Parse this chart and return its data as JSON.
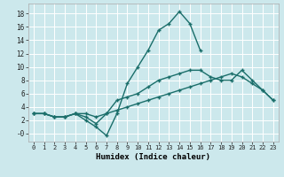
{
  "xlabel": "Humidex (Indice chaleur)",
  "bg_color": "#cce8ec",
  "grid_color": "#ffffff",
  "line_color": "#1a6e6a",
  "xlim": [
    -0.5,
    23.5
  ],
  "ylim": [
    -1.2,
    19.5
  ],
  "xticks": [
    0,
    1,
    2,
    3,
    4,
    5,
    6,
    7,
    8,
    9,
    10,
    11,
    12,
    13,
    14,
    15,
    16,
    17,
    18,
    19,
    20,
    21,
    22,
    23
  ],
  "yticks": [
    0,
    2,
    4,
    6,
    8,
    10,
    12,
    14,
    16,
    18
  ],
  "ytick_labels": [
    "-0",
    "2",
    "4",
    "6",
    "8",
    "10",
    "12",
    "14",
    "16",
    "18"
  ],
  "line1_x": [
    0,
    1,
    2,
    3,
    4,
    5,
    6,
    7,
    8,
    9,
    10,
    11,
    12,
    13,
    14,
    15,
    16
  ],
  "line1_y": [
    3,
    3,
    2.5,
    2.5,
    3,
    2,
    1,
    -0.3,
    3,
    7.5,
    10,
    12.5,
    15.5,
    16.5,
    18.3,
    16.5,
    12.5
  ],
  "line2_x": [
    0,
    1,
    2,
    3,
    4,
    5,
    6,
    7,
    8,
    9,
    10,
    11,
    12,
    13,
    14,
    15,
    16,
    17,
    18,
    19,
    20,
    21,
    22,
    23
  ],
  "line2_y": [
    3,
    3,
    2.5,
    2.5,
    3,
    2.5,
    1.5,
    3,
    5,
    5.5,
    6,
    7,
    8,
    8.5,
    9,
    9.5,
    9.5,
    8.5,
    8,
    8,
    9.5,
    8,
    6.5,
    5
  ],
  "line3_x": [
    0,
    1,
    2,
    3,
    4,
    5,
    6,
    7,
    8,
    9,
    10,
    11,
    12,
    13,
    14,
    15,
    16,
    17,
    18,
    19,
    20,
    21,
    22,
    23
  ],
  "line3_y": [
    3,
    3,
    2.5,
    2.5,
    3,
    3,
    2.5,
    3,
    3.5,
    4,
    4.5,
    5,
    5.5,
    6,
    6.5,
    7,
    7.5,
    8,
    8.5,
    9,
    8.5,
    7.5,
    6.5,
    5
  ]
}
